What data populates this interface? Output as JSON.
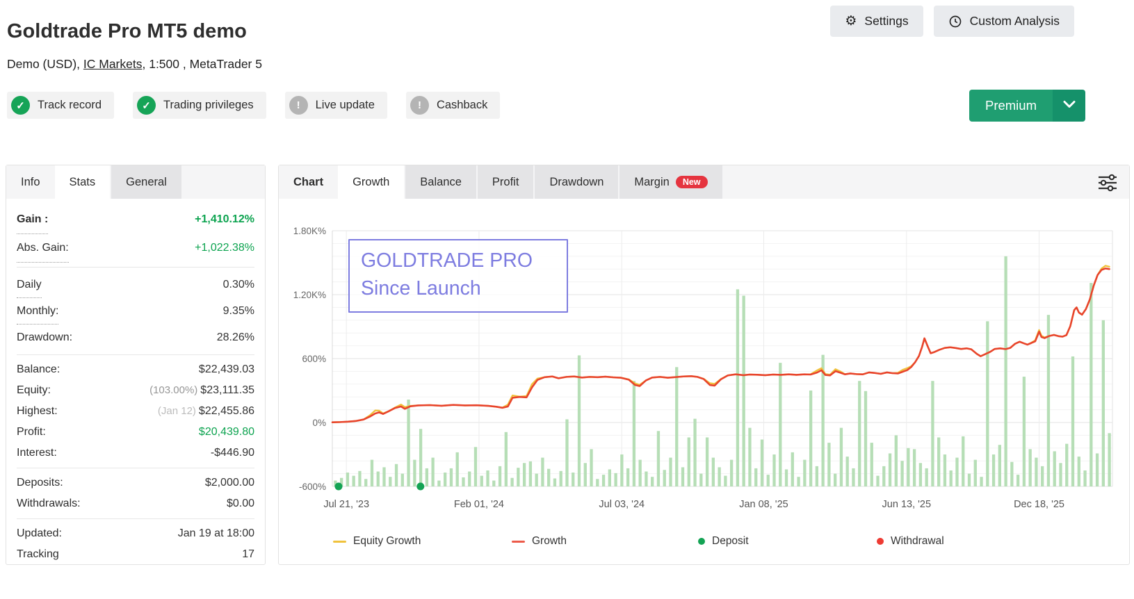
{
  "header": {
    "title": "Goldtrade Pro MT5 demo",
    "subtitle_prefix": "Demo (USD), ",
    "subtitle_link": "IC Markets",
    "subtitle_suffix": ", 1:500 , MetaTrader 5",
    "settings_label": "Settings",
    "custom_analysis_label": "Custom Analysis",
    "premium_label": "Premium"
  },
  "icons": {
    "check": "✓",
    "exclamation": "!",
    "gear": "⚙"
  },
  "badges": [
    {
      "label": "Track record",
      "status": "ok"
    },
    {
      "label": "Trading privileges",
      "status": "ok"
    },
    {
      "label": "Live update",
      "status": "warn"
    },
    {
      "label": "Cashback",
      "status": "warn"
    }
  ],
  "stats_tabs": {
    "info": "Info",
    "stats": "Stats",
    "general": "General"
  },
  "stats": {
    "gain": {
      "label": "Gain :",
      "value": "+1,410.12%"
    },
    "abs_gain": {
      "label": "Abs. Gain:",
      "value": "+1,022.38%"
    },
    "daily": {
      "label": "Daily",
      "value": "0.30%"
    },
    "monthly": {
      "label": "Monthly:",
      "value": "9.35%"
    },
    "drawdown": {
      "label": "Drawdown:",
      "value": "28.26%"
    },
    "balance": {
      "label": "Balance:",
      "value": "$22,439.03"
    },
    "equity": {
      "label": "Equity:",
      "prefix": "(103.00%)",
      "value": "$23,111.35"
    },
    "highest": {
      "label": "Highest:",
      "prefix": "(Jan 12)",
      "value": "$22,455.86"
    },
    "profit": {
      "label": "Profit:",
      "value": "$20,439.80"
    },
    "interest": {
      "label": "Interest:",
      "value": "-$446.90"
    },
    "deposits": {
      "label": "Deposits:",
      "value": "$2,000.00"
    },
    "withdrawals": {
      "label": "Withdrawals:",
      "value": "$0.00"
    },
    "updated": {
      "label": "Updated:",
      "value": "Jan 19 at 18:00"
    },
    "tracking": {
      "label": "Tracking",
      "value": "17"
    }
  },
  "chart_tabs": {
    "chart": "Chart",
    "growth": "Growth",
    "balance": "Balance",
    "profit": "Profit",
    "drawdown": "Drawdown",
    "margin": "Margin",
    "margin_badge": "New"
  },
  "chart_panel": {
    "watermark_line1": "GOLDTRADE PRO",
    "watermark_line2": "Since Launch",
    "legend": {
      "equity_growth": "Equity Growth",
      "growth": "Growth",
      "deposit": "Deposit",
      "withdrawal": "Withdrawal"
    }
  },
  "chart_data": {
    "type": "line+bar",
    "title": "Growth",
    "ylim": [
      -600,
      1800
    ],
    "grid": true,
    "legend_position": "bottom",
    "colors": {
      "equity": "#f0c23c",
      "growth": "#e8442c",
      "growth_legend": "#ec5a49",
      "deposit": "#13a354",
      "withdrawal": "#ee3b33",
      "bars": "#b6deb6"
    },
    "y_ticks": [
      {
        "value": 1800,
        "label": "1.80K%"
      },
      {
        "value": 1200,
        "label": "1.20K%"
      },
      {
        "value": 600,
        "label": "600%"
      },
      {
        "value": 0,
        "label": "0%"
      },
      {
        "value": -600,
        "label": "-600%"
      }
    ],
    "minor_grid_step": 120,
    "x_ticks": [
      {
        "pos": 0.018,
        "label": "Jul 21, '23"
      },
      {
        "pos": 0.188,
        "label": "Feb 01, '24"
      },
      {
        "pos": 0.371,
        "label": "Jul 03, '24"
      },
      {
        "pos": 0.553,
        "label": "Jan 08, '25"
      },
      {
        "pos": 0.736,
        "label": "Jun 13, '25"
      },
      {
        "pos": 0.906,
        "label": "Dec 18, '25"
      }
    ],
    "growth_points": [
      [
        0,
        2
      ],
      [
        0.01,
        4
      ],
      [
        0.02,
        8
      ],
      [
        0.03,
        14
      ],
      [
        0.04,
        28
      ],
      [
        0.048,
        55
      ],
      [
        0.055,
        85
      ],
      [
        0.06,
        95
      ],
      [
        0.065,
        80
      ],
      [
        0.072,
        105
      ],
      [
        0.08,
        135
      ],
      [
        0.088,
        150
      ],
      [
        0.093,
        128
      ],
      [
        0.1,
        152
      ],
      [
        0.11,
        160
      ],
      [
        0.125,
        163
      ],
      [
        0.14,
        157
      ],
      [
        0.155,
        165
      ],
      [
        0.17,
        160
      ],
      [
        0.185,
        162
      ],
      [
        0.2,
        156
      ],
      [
        0.21,
        148
      ],
      [
        0.218,
        138
      ],
      [
        0.225,
        150
      ],
      [
        0.231,
        232
      ],
      [
        0.24,
        240
      ],
      [
        0.249,
        236
      ],
      [
        0.256,
        330
      ],
      [
        0.263,
        400
      ],
      [
        0.272,
        425
      ],
      [
        0.282,
        432
      ],
      [
        0.29,
        415
      ],
      [
        0.3,
        428
      ],
      [
        0.31,
        432
      ],
      [
        0.32,
        422
      ],
      [
        0.33,
        428
      ],
      [
        0.34,
        425
      ],
      [
        0.35,
        430
      ],
      [
        0.36,
        424
      ],
      [
        0.37,
        420
      ],
      [
        0.38,
        402
      ],
      [
        0.388,
        352
      ],
      [
        0.394,
        342
      ],
      [
        0.402,
        395
      ],
      [
        0.41,
        422
      ],
      [
        0.42,
        428
      ],
      [
        0.43,
        420
      ],
      [
        0.44,
        426
      ],
      [
        0.45,
        432
      ],
      [
        0.46,
        435
      ],
      [
        0.468,
        428
      ],
      [
        0.476,
        408
      ],
      [
        0.484,
        352
      ],
      [
        0.49,
        346
      ],
      [
        0.498,
        405
      ],
      [
        0.507,
        442
      ],
      [
        0.517,
        452
      ],
      [
        0.527,
        444
      ],
      [
        0.535,
        450
      ],
      [
        0.545,
        448
      ],
      [
        0.555,
        444
      ],
      [
        0.565,
        450
      ],
      [
        0.575,
        447
      ],
      [
        0.585,
        452
      ],
      [
        0.595,
        447
      ],
      [
        0.605,
        452
      ],
      [
        0.613,
        450
      ],
      [
        0.621,
        468
      ],
      [
        0.627,
        490
      ],
      [
        0.632,
        446
      ],
      [
        0.638,
        442
      ],
      [
        0.645,
        482
      ],
      [
        0.651,
        468
      ],
      [
        0.657,
        452
      ],
      [
        0.664,
        460
      ],
      [
        0.672,
        454
      ],
      [
        0.68,
        452
      ],
      [
        0.688,
        470
      ],
      [
        0.696,
        464
      ],
      [
        0.703,
        457
      ],
      [
        0.711,
        470
      ],
      [
        0.718,
        463
      ],
      [
        0.725,
        460
      ],
      [
        0.731,
        476
      ],
      [
        0.737,
        492
      ],
      [
        0.742,
        520
      ],
      [
        0.747,
        565
      ],
      [
        0.752,
        625
      ],
      [
        0.756,
        710
      ],
      [
        0.759,
        790
      ],
      [
        0.763,
        718
      ],
      [
        0.767,
        650
      ],
      [
        0.772,
        662
      ],
      [
        0.778,
        682
      ],
      [
        0.785,
        700
      ],
      [
        0.792,
        706
      ],
      [
        0.799,
        699
      ],
      [
        0.806,
        690
      ],
      [
        0.813,
        696
      ],
      [
        0.819,
        687
      ],
      [
        0.826,
        645
      ],
      [
        0.831,
        622
      ],
      [
        0.837,
        642
      ],
      [
        0.843,
        662
      ],
      [
        0.849,
        690
      ],
      [
        0.856,
        696
      ],
      [
        0.863,
        689
      ],
      [
        0.869,
        700
      ],
      [
        0.875,
        738
      ],
      [
        0.881,
        758
      ],
      [
        0.886,
        744
      ],
      [
        0.891,
        731
      ],
      [
        0.896,
        746
      ],
      [
        0.901,
        762
      ],
      [
        0.906,
        852
      ],
      [
        0.909,
        802
      ],
      [
        0.913,
        792
      ],
      [
        0.919,
        812
      ],
      [
        0.925,
        822
      ],
      [
        0.931,
        810
      ],
      [
        0.936,
        806
      ],
      [
        0.941,
        820
      ],
      [
        0.946,
        905
      ],
      [
        0.951,
        1055
      ],
      [
        0.954,
        1080
      ],
      [
        0.957,
        1032
      ],
      [
        0.961,
        1012
      ],
      [
        0.966,
        1065
      ],
      [
        0.971,
        1155
      ],
      [
        0.976,
        1285
      ],
      [
        0.981,
        1385
      ],
      [
        0.986,
        1432
      ],
      [
        0.991,
        1446
      ],
      [
        0.996,
        1440
      ]
    ],
    "equity_bumps": [
      [
        0.055,
        28
      ],
      [
        0.09,
        22
      ],
      [
        0.229,
        26
      ],
      [
        0.256,
        30
      ],
      [
        0.39,
        18
      ],
      [
        0.487,
        22
      ],
      [
        0.624,
        26
      ],
      [
        0.646,
        20
      ],
      [
        0.734,
        24
      ],
      [
        0.906,
        16
      ],
      [
        0.993,
        30
      ]
    ],
    "bars_baseline": -600,
    "bar_tops": [
      -545,
      -520,
      -470,
      -500,
      -455,
      -530,
      -350,
      -460,
      -420,
      -510,
      -390,
      -480,
      215,
      -350,
      -60,
      -430,
      -330,
      -545,
      -470,
      -430,
      -280,
      -515,
      -460,
      -230,
      -500,
      -450,
      -545,
      -410,
      -90,
      -520,
      -425,
      -380,
      -365,
      -480,
      -330,
      -435,
      -525,
      -455,
      30,
      -470,
      630,
      -380,
      -250,
      -530,
      -490,
      -440,
      -475,
      -300,
      -430,
      390,
      -350,
      -460,
      -510,
      -80,
      -445,
      -330,
      520,
      -420,
      -140,
      35,
      -480,
      -140,
      -330,
      -420,
      -500,
      -350,
      1250,
      1190,
      -50,
      -430,
      -160,
      -490,
      -300,
      560,
      -440,
      -280,
      -510,
      -350,
      300,
      -410,
      635,
      -190,
      -480,
      -50,
      -320,
      -430,
      390,
      295,
      -190,
      -500,
      -410,
      -290,
      -120,
      -360,
      -240,
      -250,
      -380,
      -430,
      390,
      -140,
      -300,
      -450,
      -330,
      -130,
      -480,
      -350,
      -510,
      950,
      -300,
      -210,
      1560,
      -370,
      -490,
      430,
      -250,
      -330,
      -410,
      1010,
      -270,
      -380,
      -200,
      620,
      -320,
      -450,
      1310,
      -290,
      960,
      -100
    ],
    "deposit_positions": [
      0.008,
      0.113
    ],
    "withdrawal_positions": []
  }
}
